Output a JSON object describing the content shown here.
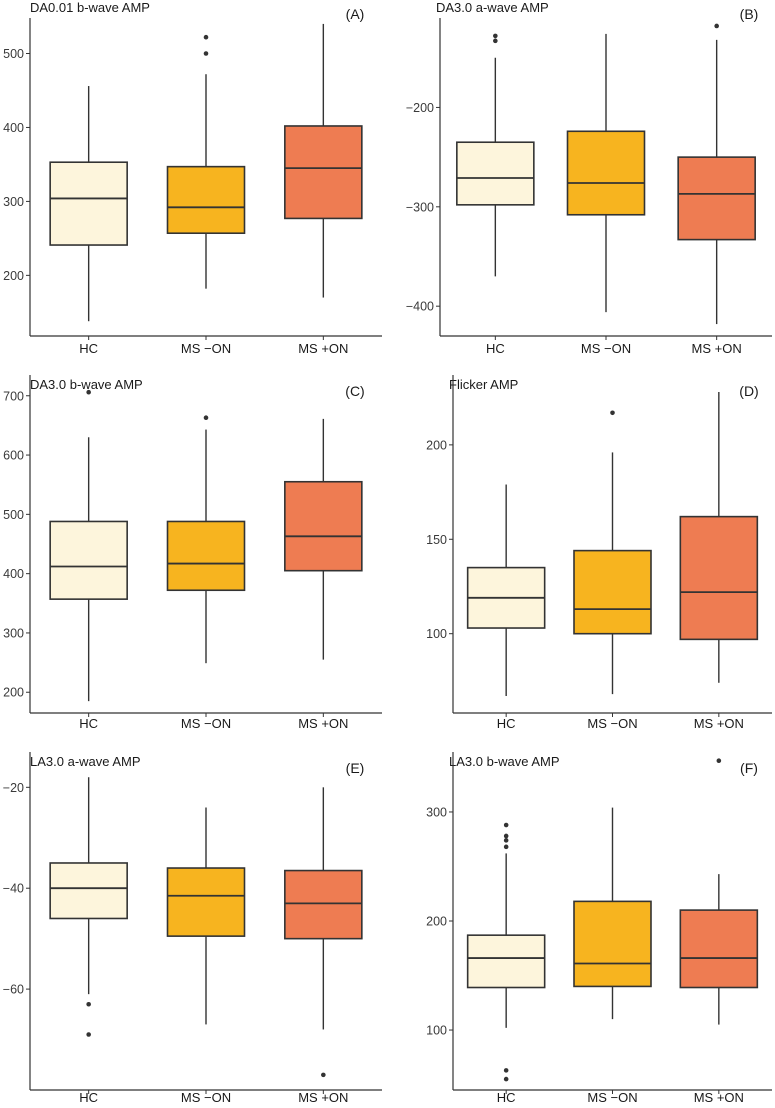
{
  "figure": {
    "colors": {
      "HC": "#fdf5dc",
      "MS −ON": "#f7b41f",
      "MS +ON": "#ee7c52",
      "line": "#333333"
    }
  },
  "chart_data": [
    {
      "type": "boxplot",
      "panel_label": "(A)",
      "title": "DA0.01 b-wave AMP",
      "categories": [
        "HC",
        "MS −ON",
        "MS +ON"
      ],
      "ylim": [
        118,
        548
      ],
      "yticks": [
        200,
        300,
        400,
        500
      ],
      "boxes": [
        {
          "group": "HC",
          "whisker_low": 138,
          "q1": 241,
          "median": 304,
          "q3": 353,
          "whisker_high": 456,
          "outliers": []
        },
        {
          "group": "MS −ON",
          "whisker_low": 182,
          "q1": 257,
          "median": 292,
          "q3": 347,
          "whisker_high": 472,
          "outliers": [
            500,
            522
          ]
        },
        {
          "group": "MS +ON",
          "whisker_low": 170,
          "q1": 277,
          "median": 345,
          "q3": 402,
          "whisker_high": 540,
          "outliers": []
        }
      ]
    },
    {
      "type": "boxplot",
      "panel_label": "(B)",
      "title": "DA3.0 a-wave AMP",
      "categories": [
        "HC",
        "MS −ON",
        "MS +ON"
      ],
      "ylim": [
        -430,
        -110
      ],
      "yticks": [
        -400,
        -300,
        -200
      ],
      "boxes": [
        {
          "group": "HC",
          "whisker_low": -370,
          "q1": -298,
          "median": -271,
          "q3": -235,
          "whisker_high": -150,
          "outliers": [
            -133,
            -128
          ]
        },
        {
          "group": "MS −ON",
          "whisker_low": -406,
          "q1": -308,
          "median": -276,
          "q3": -224,
          "whisker_high": -126,
          "outliers": []
        },
        {
          "group": "MS +ON",
          "whisker_low": -418,
          "q1": -333,
          "median": -287,
          "q3": -250,
          "whisker_high": -132,
          "outliers": [
            -118
          ]
        }
      ]
    },
    {
      "type": "boxplot",
      "panel_label": "(C)",
      "title": "DA3.0 b-wave AMP",
      "categories": [
        "HC",
        "MS −ON",
        "MS +ON"
      ],
      "ylim": [
        165,
        735
      ],
      "yticks": [
        200,
        300,
        400,
        500,
        600,
        700
      ],
      "boxes": [
        {
          "group": "HC",
          "whisker_low": 185,
          "q1": 357,
          "median": 412,
          "q3": 488,
          "whisker_high": 630,
          "outliers": [
            706
          ]
        },
        {
          "group": "MS −ON",
          "whisker_low": 249,
          "q1": 372,
          "median": 417,
          "q3": 488,
          "whisker_high": 643,
          "outliers": [
            663
          ]
        },
        {
          "group": "MS +ON",
          "whisker_low": 255,
          "q1": 405,
          "median": 463,
          "q3": 555,
          "whisker_high": 661,
          "outliers": []
        }
      ]
    },
    {
      "type": "boxplot",
      "panel_label": "(D)",
      "title": "Flicker AMP",
      "categories": [
        "HC",
        "MS −ON",
        "MS +ON"
      ],
      "ylim": [
        58,
        237
      ],
      "yticks": [
        100,
        150,
        200
      ],
      "boxes": [
        {
          "group": "HC",
          "whisker_low": 67,
          "q1": 103,
          "median": 119,
          "q3": 135,
          "whisker_high": 179,
          "outliers": []
        },
        {
          "group": "MS −ON",
          "whisker_low": 68,
          "q1": 100,
          "median": 113,
          "q3": 144,
          "whisker_high": 196,
          "outliers": [
            217
          ]
        },
        {
          "group": "MS +ON",
          "whisker_low": 74,
          "q1": 97,
          "median": 122,
          "q3": 162,
          "whisker_high": 228,
          "outliers": []
        }
      ]
    },
    {
      "type": "boxplot",
      "panel_label": "(E)",
      "title": "LA3.0 a-wave AMP",
      "categories": [
        "HC",
        "MS −ON",
        "MS +ON"
      ],
      "ylim": [
        -80,
        -13
      ],
      "yticks": [
        -60,
        -40,
        -20
      ],
      "boxes": [
        {
          "group": "HC",
          "whisker_low": -61,
          "q1": -46,
          "median": -40,
          "q3": -35,
          "whisker_high": -18,
          "outliers": [
            -63,
            -69
          ]
        },
        {
          "group": "MS −ON",
          "whisker_low": -67,
          "q1": -49.5,
          "median": -41.5,
          "q3": -36,
          "whisker_high": -24,
          "outliers": []
        },
        {
          "group": "MS +ON",
          "whisker_low": -68,
          "q1": -50,
          "median": -43,
          "q3": -36.5,
          "whisker_high": -20,
          "outliers": [
            -77
          ]
        }
      ]
    },
    {
      "type": "boxplot",
      "panel_label": "(F)",
      "title": "LA3.0 b-wave AMP",
      "categories": [
        "HC",
        "MS −ON",
        "MS +ON"
      ],
      "ylim": [
        45,
        355
      ],
      "yticks": [
        100,
        200,
        300
      ],
      "boxes": [
        {
          "group": "HC",
          "whisker_low": 102,
          "q1": 139,
          "median": 166,
          "q3": 187,
          "whisker_high": 262,
          "outliers": [
            55,
            63,
            268,
            274,
            278,
            288
          ]
        },
        {
          "group": "MS −ON",
          "whisker_low": 110,
          "q1": 140,
          "median": 161,
          "q3": 218,
          "whisker_high": 304,
          "outliers": []
        },
        {
          "group": "MS +ON",
          "whisker_low": 105,
          "q1": 139,
          "median": 166,
          "q3": 210,
          "whisker_high": 243,
          "outliers": [
            347
          ]
        }
      ]
    }
  ]
}
